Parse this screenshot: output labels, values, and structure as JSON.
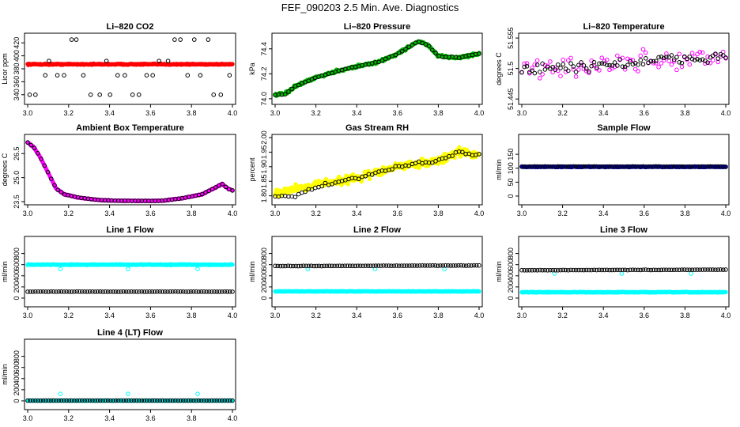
{
  "figure": {
    "title": "FEF_090203  2.5 Min. Ave. Diagnostics"
  },
  "chart_data": [
    {
      "type": "scatter",
      "title": "Li–820 CO2",
      "xlabel": "",
      "ylabel": "Licor ppm",
      "xlim": [
        3.0,
        4.0
      ],
      "ylim": [
        330,
        430
      ],
      "xticks": [
        "3.0",
        "3.2",
        "3.4",
        "3.6",
        "3.8",
        "4.0"
      ],
      "yticks": [
        "340",
        "360",
        "380",
        "400",
        "420"
      ],
      "series": [
        {
          "color": "#ff0000",
          "shape": "dense-band",
          "start": 387,
          "end": 387,
          "noise": 1.2
        },
        {
          "color": "#000000",
          "shape": "open-circles-levels",
          "levels": [
            340,
            370,
            392,
            425
          ]
        }
      ]
    },
    {
      "type": "scatter",
      "title": "Li–820 Pressure",
      "xlabel": "",
      "ylabel": "kPa",
      "xlim": [
        3.0,
        4.0
      ],
      "ylim": [
        73.98,
        74.5
      ],
      "xticks": [
        "3.0",
        "3.2",
        "3.4",
        "3.6",
        "3.8",
        "4.0"
      ],
      "yticks": [
        "74.0",
        "74.2",
        "74.4"
      ],
      "series": [
        {
          "color": "#00bb00",
          "shape": "dense-curve",
          "points": [
            [
              3.0,
              74.03
            ],
            [
              3.05,
              74.04
            ],
            [
              3.1,
              74.1
            ],
            [
              3.2,
              74.17
            ],
            [
              3.3,
              74.22
            ],
            [
              3.4,
              74.26
            ],
            [
              3.5,
              74.29
            ],
            [
              3.6,
              74.36
            ],
            [
              3.7,
              74.46
            ],
            [
              3.75,
              74.43
            ],
            [
              3.8,
              74.34
            ],
            [
              3.9,
              74.33
            ],
            [
              4.0,
              74.36
            ]
          ],
          "noise": 0.015
        },
        {
          "color": "#000000",
          "shape": "open-circles-curve",
          "points": [
            [
              3.0,
              74.03
            ],
            [
              3.05,
              74.04
            ],
            [
              3.1,
              74.1
            ],
            [
              3.2,
              74.17
            ],
            [
              3.3,
              74.22
            ],
            [
              3.4,
              74.26
            ],
            [
              3.5,
              74.29
            ],
            [
              3.6,
              74.36
            ],
            [
              3.7,
              74.46
            ],
            [
              3.75,
              74.43
            ],
            [
              3.8,
              74.34
            ],
            [
              3.9,
              74.33
            ],
            [
              4.0,
              74.36
            ]
          ],
          "noise": 0.005
        }
      ]
    },
    {
      "type": "scatter",
      "title": "Li–820 Temperature",
      "xlabel": "",
      "ylabel": "degrees C",
      "xlim": [
        3.0,
        4.0
      ],
      "ylim": [
        51.441,
        51.558
      ],
      "xticks": [
        "3.0",
        "3.2",
        "3.4",
        "3.6",
        "3.8",
        "4.0"
      ],
      "yticks": [
        "51.445",
        "51.5",
        "51.555"
      ],
      "series": [
        {
          "color": "#ff00ff",
          "shape": "open-circles-band",
          "start": 51.497,
          "end": 51.522,
          "noise": 0.03
        },
        {
          "color": "#000000",
          "shape": "open-circles-band",
          "start": 51.497,
          "end": 51.522,
          "noise": 0.015
        }
      ]
    },
    {
      "type": "scatter",
      "title": "Ambient Box Temperature",
      "xlabel": "",
      "ylabel": "degrees C",
      "xlim": [
        3.0,
        4.0
      ],
      "ylim": [
        23.5,
        27.5
      ],
      "xticks": [
        "3.0",
        "3.2",
        "3.4",
        "3.6",
        "3.8",
        "4.0"
      ],
      "yticks": [
        "23.5",
        "25.0",
        "26.5"
      ],
      "series": [
        {
          "color": "#ff00ff",
          "shape": "dense-curve",
          "points": [
            [
              3.0,
              27.2
            ],
            [
              3.03,
              26.9
            ],
            [
              3.06,
              26.3
            ],
            [
              3.1,
              25.3
            ],
            [
              3.14,
              24.3
            ],
            [
              3.18,
              23.95
            ],
            [
              3.25,
              23.75
            ],
            [
              3.35,
              23.6
            ],
            [
              3.45,
              23.55
            ],
            [
              3.55,
              23.55
            ],
            [
              3.65,
              23.55
            ],
            [
              3.75,
              23.7
            ],
            [
              3.85,
              23.95
            ],
            [
              3.92,
              24.4
            ],
            [
              3.95,
              24.6
            ],
            [
              3.98,
              24.3
            ],
            [
              4.0,
              24.2
            ]
          ],
          "noise": 0.03
        },
        {
          "color": "#000000",
          "shape": "open-circles-curve",
          "points": [
            [
              3.0,
              27.2
            ],
            [
              3.03,
              26.9
            ],
            [
              3.06,
              26.3
            ],
            [
              3.1,
              25.3
            ],
            [
              3.14,
              24.3
            ],
            [
              3.18,
              23.95
            ],
            [
              3.25,
              23.75
            ],
            [
              3.35,
              23.6
            ],
            [
              3.45,
              23.55
            ],
            [
              3.55,
              23.55
            ],
            [
              3.65,
              23.55
            ],
            [
              3.75,
              23.7
            ],
            [
              3.85,
              23.95
            ],
            [
              3.92,
              24.4
            ],
            [
              3.95,
              24.6
            ],
            [
              3.98,
              24.3
            ],
            [
              4.0,
              24.2
            ]
          ],
          "noise": 0.01
        }
      ]
    },
    {
      "type": "scatter",
      "title": "Gas Stream RH",
      "xlabel": "",
      "ylabel": "percent",
      "xlim": [
        3.0,
        4.0
      ],
      "ylim": [
        1.78,
        2.0
      ],
      "xticks": [
        "3.0",
        "3.2",
        "3.4",
        "3.6",
        "3.8",
        "4.0"
      ],
      "yticks": [
        "1.80",
        "1.85",
        "1.90",
        "1.95",
        "2.00"
      ],
      "series": [
        {
          "color": "#ffff00",
          "shape": "dense-curve",
          "points": [
            [
              3.0,
              1.81
            ],
            [
              3.2,
              1.84
            ],
            [
              3.4,
              1.86
            ],
            [
              3.6,
              1.9
            ],
            [
              3.8,
              1.92
            ],
            [
              3.9,
              1.95
            ],
            [
              4.0,
              1.94
            ]
          ],
          "noise": 0.02
        },
        {
          "color": "#000000",
          "shape": "open-circles-curve",
          "points": [
            [
              3.0,
              1.8
            ],
            [
              3.1,
              1.8
            ],
            [
              3.2,
              1.83
            ],
            [
              3.4,
              1.86
            ],
            [
              3.6,
              1.9
            ],
            [
              3.8,
              1.92
            ],
            [
              3.9,
              1.95
            ],
            [
              4.0,
              1.94
            ]
          ],
          "noise": 0.008
        }
      ]
    },
    {
      "type": "scatter",
      "title": "Sample Flow",
      "xlabel": "",
      "ylabel": "ml/min",
      "xlim": [
        3.0,
        4.0
      ],
      "ylim": [
        -20,
        210
      ],
      "xticks": [
        "3.0",
        "3.2",
        "3.4",
        "3.6",
        "3.8",
        "4.0"
      ],
      "yticks": [
        "0",
        "50",
        "100",
        "150"
      ],
      "series": [
        {
          "color": "#0000cc",
          "shape": "dense-band",
          "start": 105,
          "end": 105,
          "noise": 1.5
        },
        {
          "color": "#000000",
          "shape": "open-circles-band",
          "start": 106,
          "end": 106,
          "noise": 1
        }
      ]
    },
    {
      "type": "scatter",
      "title": "Line 1 Flow",
      "xlabel": "",
      "ylabel": "ml/min",
      "xlim": [
        3.0,
        4.0
      ],
      "ylim": [
        -100,
        1050
      ],
      "xticks": [
        "3.0",
        "3.2",
        "3.4",
        "3.6",
        "3.8",
        "4.0"
      ],
      "yticks": [
        "0",
        "200",
        "400",
        "600",
        "800"
      ],
      "series": [
        {
          "color": "#00ffff",
          "shape": "dense-band",
          "start": 600,
          "end": 600,
          "noise": 10
        },
        {
          "color": "#00ffff",
          "shape": "open-circles-levels",
          "levels": [
            520
          ],
          "at": [
            3.16,
            3.49,
            3.83
          ]
        },
        {
          "color": "#000000",
          "shape": "open-circles-band",
          "start": 115,
          "end": 115,
          "noise": 3
        }
      ]
    },
    {
      "type": "scatter",
      "title": "Line 2 Flow",
      "xlabel": "",
      "ylabel": "ml/min",
      "xlim": [
        3.0,
        4.0
      ],
      "ylim": [
        -100,
        1050
      ],
      "xticks": [
        "3.0",
        "3.2",
        "3.4",
        "3.6",
        "3.8",
        "4.0"
      ],
      "yticks": [
        "0",
        "200",
        "400",
        "600",
        "800"
      ],
      "series": [
        {
          "color": "#00ffff",
          "shape": "dense-band",
          "start": 120,
          "end": 120,
          "noise": 6
        },
        {
          "color": "#00ffff",
          "shape": "open-circles-levels",
          "levels": [
            520
          ],
          "at": [
            3.16,
            3.49,
            3.83
          ]
        },
        {
          "color": "#000000",
          "shape": "open-circles-band",
          "start": 575,
          "end": 585,
          "noise": 4
        }
      ]
    },
    {
      "type": "scatter",
      "title": "Line 3 Flow",
      "xlabel": "",
      "ylabel": "ml/min",
      "xlim": [
        3.0,
        4.0
      ],
      "ylim": [
        -100,
        1050
      ],
      "xticks": [
        "3.0",
        "3.2",
        "3.4",
        "3.6",
        "3.8",
        "4.0"
      ],
      "yticks": [
        "0",
        "200",
        "400",
        "600",
        "800"
      ],
      "series": [
        {
          "color": "#00ffff",
          "shape": "dense-band",
          "start": 105,
          "end": 105,
          "noise": 8
        },
        {
          "color": "#00ffff",
          "shape": "open-circles-levels",
          "levels": [
            440
          ],
          "at": [
            3.16,
            3.49,
            3.83
          ]
        },
        {
          "color": "#000000",
          "shape": "open-circles-band",
          "start": 500,
          "end": 510,
          "noise": 4
        }
      ]
    },
    {
      "type": "scatter",
      "title": "Line 4 (LT) Flow",
      "xlabel": "",
      "ylabel": "ml/min",
      "xlim": [
        3.0,
        4.0
      ],
      "ylim": [
        -100,
        1050
      ],
      "xticks": [
        "3.0",
        "3.2",
        "3.4",
        "3.6",
        "3.8",
        "4.0"
      ],
      "yticks": [
        "0",
        "200",
        "400",
        "600",
        "800"
      ],
      "series": [
        {
          "color": "#00ffff",
          "shape": "dense-band",
          "start": 5,
          "end": 5,
          "noise": 3
        },
        {
          "color": "#00ffff",
          "shape": "open-circles-levels",
          "levels": [
            125
          ],
          "at": [
            3.16,
            3.49,
            3.83
          ]
        },
        {
          "color": "#000000",
          "shape": "open-circles-band",
          "start": 5,
          "end": 5,
          "noise": 2
        }
      ]
    }
  ]
}
